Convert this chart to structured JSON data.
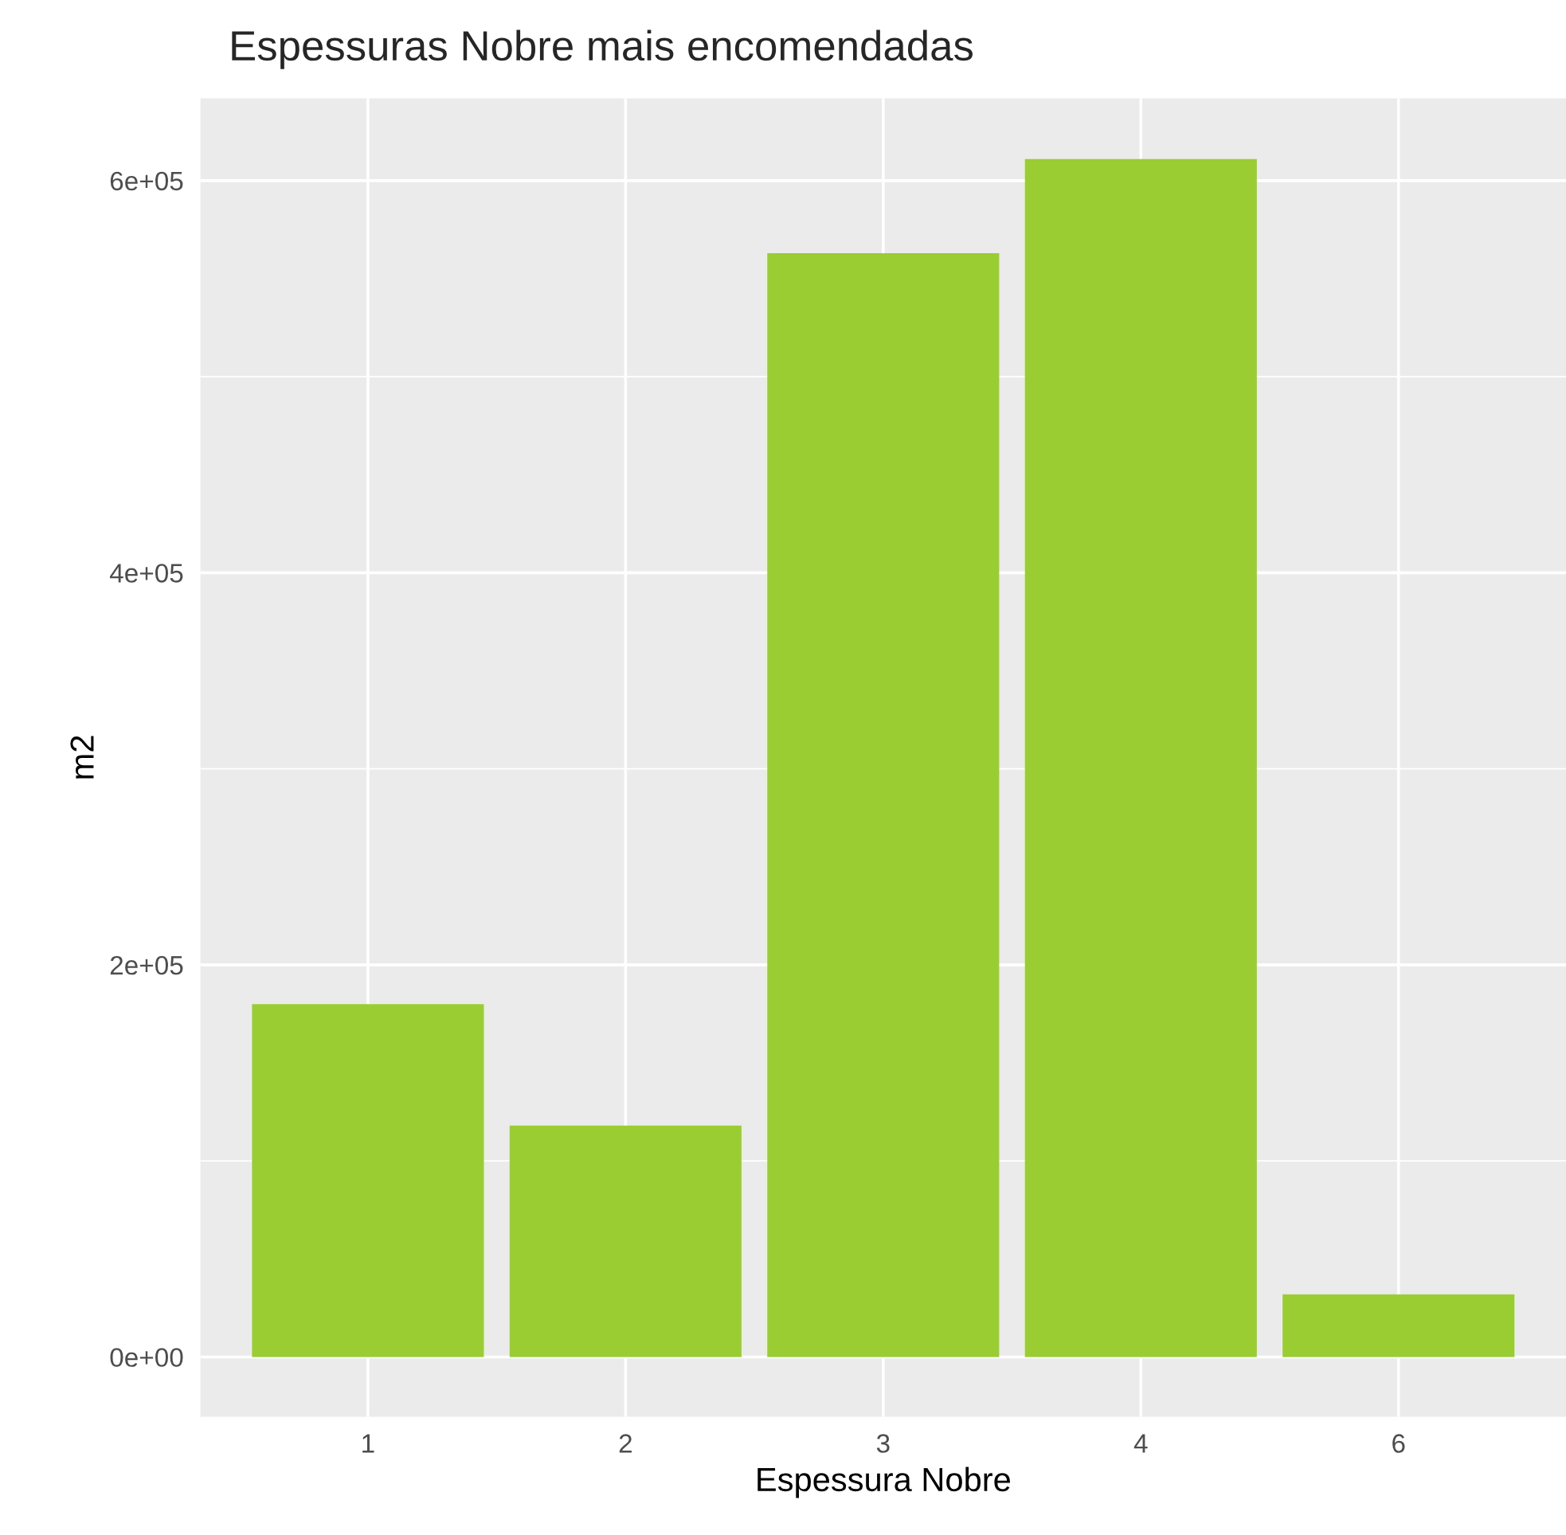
{
  "chart_data": {
    "type": "bar",
    "title": "Espessuras Nobre mais encomendadas",
    "xlabel": "Espessura Nobre",
    "ylabel": "m2",
    "categories": [
      "1",
      "2",
      "3",
      "4",
      "6"
    ],
    "values": [
      180000,
      118000,
      563000,
      611000,
      32000
    ],
    "color": "#9acd32",
    "ylim": [
      -30500,
      642000
    ],
    "yticks": [
      {
        "value": 0,
        "label": "0e+00"
      },
      {
        "value": 200000,
        "label": "2e+05"
      },
      {
        "value": 400000,
        "label": "4e+05"
      },
      {
        "value": 600000,
        "label": "6e+05"
      }
    ],
    "grid": true,
    "legend": false
  }
}
